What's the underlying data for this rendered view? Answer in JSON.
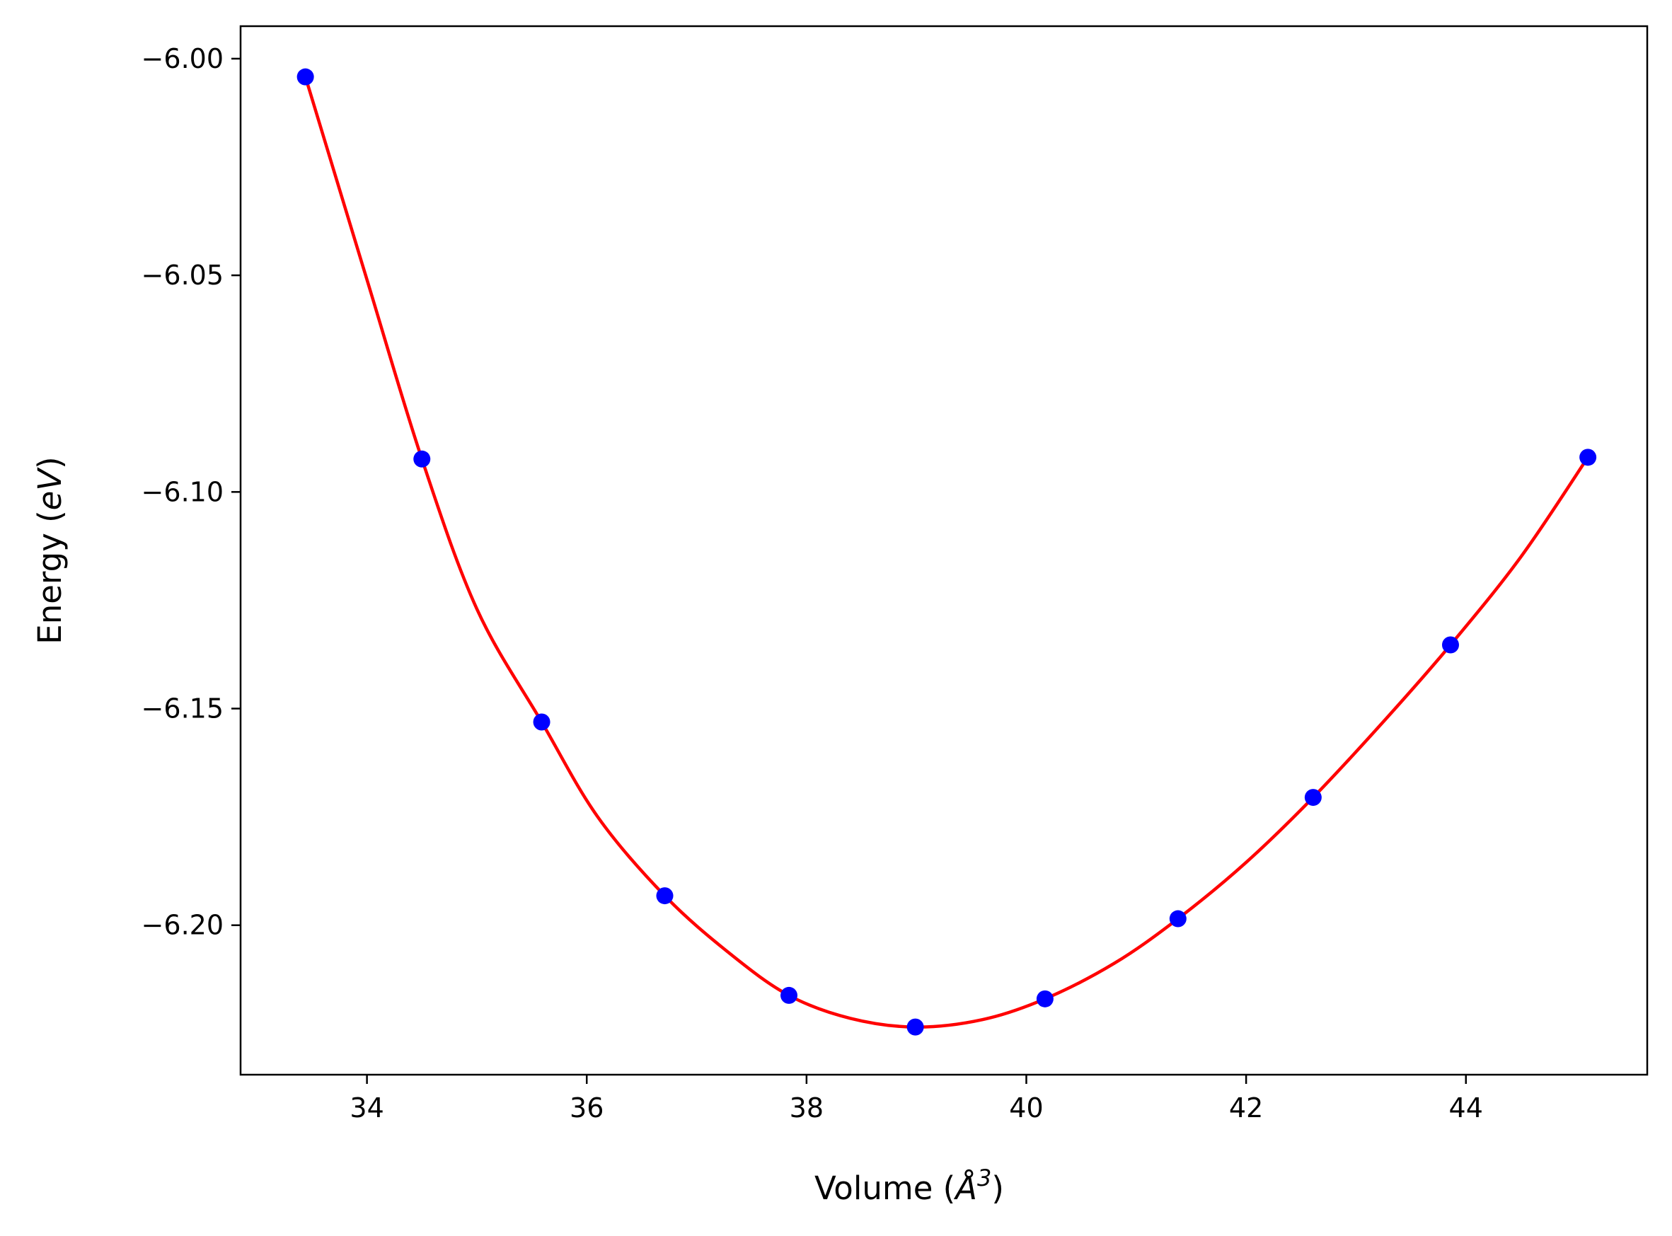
{
  "chart_data": {
    "type": "scatter",
    "title": "",
    "xlabel": {
      "prefix": "Volume (",
      "symbol": "Å",
      "sup": "3",
      "suffix": ")"
    },
    "ylabel": {
      "prefix": "Energy (",
      "var": "eV",
      "suffix": ")"
    },
    "xlim": [
      32.85,
      45.65
    ],
    "ylim": [
      -6.2345,
      -5.9925
    ],
    "x_ticks": [
      34,
      36,
      38,
      40,
      42,
      44
    ],
    "y_ticks": [
      -6.0,
      -6.05,
      -6.1,
      -6.15,
      -6.2
    ],
    "x_tick_labels": [
      "34",
      "36",
      "38",
      "40",
      "42",
      "44"
    ],
    "y_tick_labels": [
      "−6.00",
      "−6.05",
      "−6.10",
      "−6.15",
      "−6.20"
    ],
    "grid": false,
    "legend": "none",
    "series": [
      {
        "kind": "points",
        "color": "#0000ff",
        "x": [
          33.44,
          34.5,
          35.59,
          36.71,
          37.84,
          38.99,
          40.17,
          41.38,
          42.61,
          43.86,
          45.11
        ],
        "y": [
          -6.0042,
          -6.0924,
          -6.1531,
          -6.1932,
          -6.2162,
          -6.2235,
          -6.217,
          -6.1985,
          -6.1705,
          -6.1353,
          -6.092
        ]
      },
      {
        "kind": "fit-curve",
        "color": "#ff0000",
        "x": [
          33.44,
          34.0,
          34.5,
          35.0,
          35.59,
          36.1,
          36.71,
          37.3,
          37.84,
          38.4,
          38.99,
          39.6,
          40.17,
          40.8,
          41.38,
          42.0,
          42.61,
          43.25,
          43.86,
          44.5,
          45.11
        ],
        "y": [
          -6.0042,
          -6.051,
          -6.0924,
          -6.127,
          -6.1531,
          -6.175,
          -6.1932,
          -6.2065,
          -6.2162,
          -6.2215,
          -6.2235,
          -6.2218,
          -6.217,
          -6.2088,
          -6.1985,
          -6.1855,
          -6.1705,
          -6.153,
          -6.1353,
          -6.115,
          -6.092
        ]
      }
    ]
  }
}
